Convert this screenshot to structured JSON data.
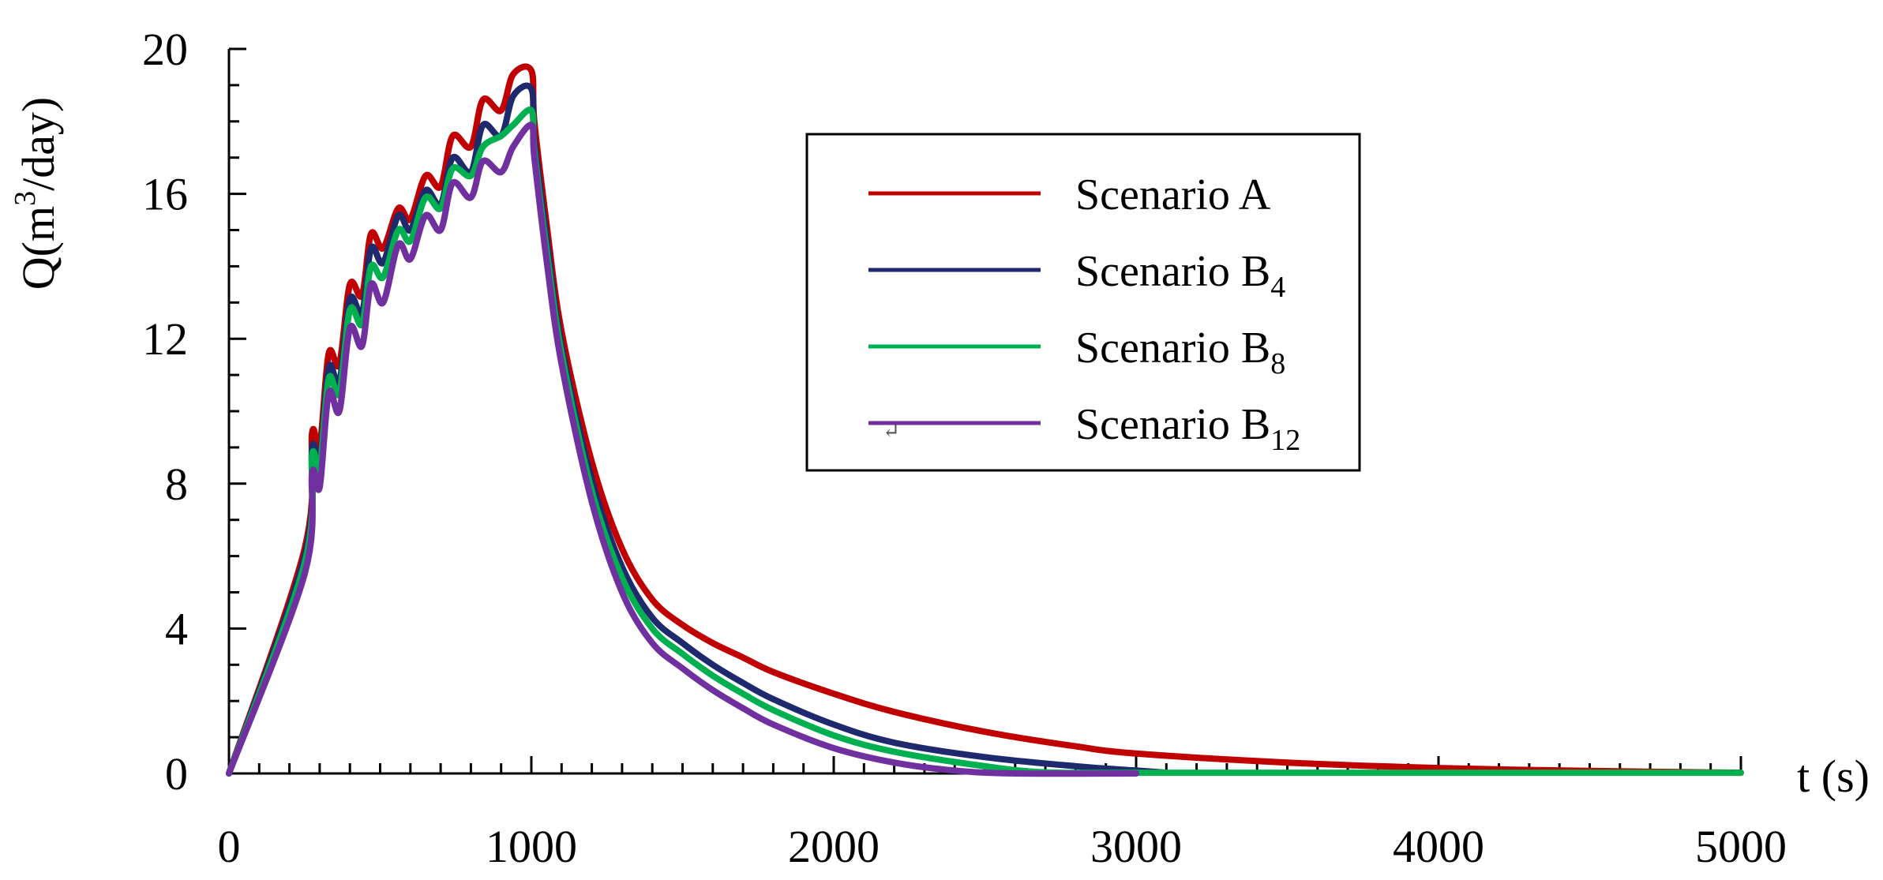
{
  "chart_data": {
    "type": "line",
    "title": "",
    "xlabel": "t (s)",
    "ylabel": "Q(m³/day)",
    "ylabel_parts": {
      "pre": "Q(m",
      "sup": "3",
      "post": "/day)"
    },
    "xlim": [
      0,
      5000
    ],
    "ylim": [
      0,
      20
    ],
    "x_ticks": [
      0,
      1000,
      2000,
      3000,
      4000,
      5000
    ],
    "x_tick_labels": [
      "0",
      "1000",
      "2000",
      "3000",
      "4000",
      "5000"
    ],
    "y_ticks": [
      0,
      4,
      8,
      12,
      16,
      20
    ],
    "y_tick_labels": [
      "0",
      "4",
      "8",
      "12",
      "16",
      "20"
    ],
    "grid": false,
    "legend_position": "upper-right",
    "legend_mark": "↵",
    "series": [
      {
        "name": "Scenario A",
        "label_main": "Scenario A",
        "label_sub": "",
        "color": "#c00000",
        "x": [
          0,
          250,
          275,
          300,
          330,
          365,
          400,
          440,
          470,
          510,
          560,
          600,
          650,
          700,
          740,
          800,
          840,
          900,
          940,
          1000,
          1010,
          1050,
          1100,
          1200,
          1300,
          1400,
          1500,
          1600,
          1700,
          1800,
          2000,
          2200,
          2500,
          2800,
          3000,
          3500,
          4000,
          4500,
          5000
        ],
        "y": [
          0,
          6.2,
          9.4,
          9.0,
          11.6,
          11.3,
          13.5,
          13.2,
          14.9,
          14.5,
          15.6,
          15.3,
          16.5,
          16.2,
          17.6,
          17.3,
          18.6,
          18.3,
          19.3,
          19.4,
          18.0,
          15.2,
          12.2,
          8.6,
          6.2,
          4.8,
          4.1,
          3.6,
          3.2,
          2.8,
          2.2,
          1.7,
          1.15,
          0.75,
          0.55,
          0.3,
          0.15,
          0.07,
          0.02
        ]
      },
      {
        "name": "Scenario B4",
        "label_main": "Scenario B",
        "label_sub": "4",
        "color": "#1f2a6e",
        "x": [
          0,
          250,
          275,
          300,
          330,
          365,
          400,
          440,
          470,
          510,
          560,
          600,
          650,
          700,
          740,
          800,
          840,
          900,
          940,
          1000,
          1010,
          1050,
          1100,
          1200,
          1300,
          1400,
          1500,
          1600,
          1700,
          1800,
          2000,
          2200,
          2500,
          2800,
          3000,
          3100
        ],
        "y": [
          0,
          6.0,
          9.0,
          8.6,
          11.2,
          10.8,
          13.1,
          12.7,
          14.5,
          14.1,
          15.4,
          15.0,
          16.1,
          15.7,
          17.0,
          16.6,
          17.9,
          17.6,
          18.7,
          18.9,
          17.5,
          14.8,
          11.8,
          8.1,
          5.7,
          4.3,
          3.6,
          3.0,
          2.5,
          2.05,
          1.35,
          0.85,
          0.45,
          0.2,
          0.08,
          0.02
        ]
      },
      {
        "name": "Scenario B8",
        "label_main": "Scenario B",
        "label_sub": "8",
        "color": "#00b050",
        "x": [
          0,
          250,
          275,
          300,
          330,
          365,
          400,
          440,
          470,
          510,
          560,
          600,
          650,
          700,
          740,
          800,
          840,
          900,
          940,
          1000,
          1010,
          1050,
          1100,
          1200,
          1300,
          1400,
          1500,
          1600,
          1700,
          1800,
          2000,
          2200,
          2500,
          2700,
          3000,
          3500,
          4000,
          4500,
          5000
        ],
        "y": [
          0,
          5.8,
          8.8,
          8.4,
          10.9,
          10.5,
          12.8,
          12.4,
          14.0,
          13.7,
          15.0,
          14.7,
          15.9,
          15.6,
          16.7,
          16.5,
          17.3,
          17.6,
          17.9,
          18.3,
          17.2,
          14.5,
          11.6,
          7.8,
          5.4,
          4.0,
          3.3,
          2.7,
          2.2,
          1.75,
          1.05,
          0.6,
          0.2,
          0.03,
          0.02,
          0.02,
          0.02,
          0.02,
          0.02
        ]
      },
      {
        "name": "Scenario B12",
        "label_main": "Scenario B",
        "label_sub": "12",
        "color": "#7030a0",
        "x": [
          0,
          250,
          275,
          300,
          330,
          365,
          400,
          440,
          470,
          510,
          560,
          600,
          650,
          700,
          740,
          800,
          840,
          900,
          940,
          1000,
          1010,
          1050,
          1100,
          1200,
          1300,
          1400,
          1500,
          1600,
          1700,
          1800,
          2000,
          2200,
          2400,
          2600,
          3000
        ],
        "y": [
          0,
          5.5,
          8.3,
          7.9,
          10.5,
          10.0,
          12.3,
          11.8,
          13.5,
          13.0,
          14.6,
          14.2,
          15.4,
          15.0,
          16.3,
          15.9,
          16.9,
          16.6,
          17.3,
          17.9,
          17.0,
          14.2,
          11.3,
          7.5,
          5.0,
          3.6,
          2.9,
          2.3,
          1.8,
          1.35,
          0.7,
          0.3,
          0.08,
          0.0,
          0.0
        ]
      }
    ]
  }
}
